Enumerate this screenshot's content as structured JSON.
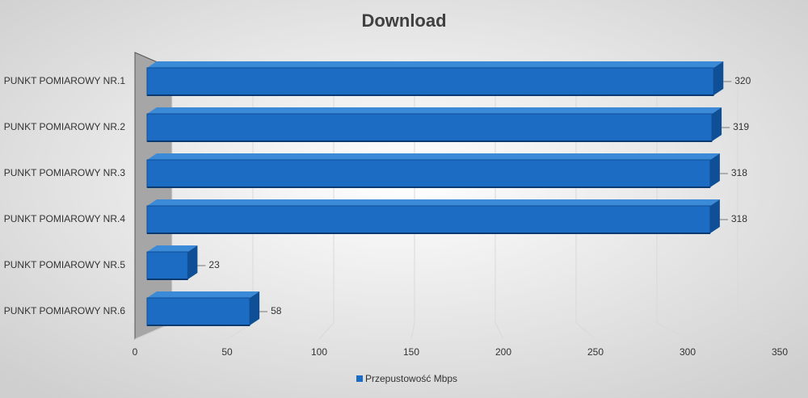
{
  "chart_data": {
    "type": "bar",
    "orientation": "horizontal",
    "title": "Download",
    "categories": [
      "PUNKT POMIAROWY NR.1",
      "PUNKT POMIAROWY NR.2",
      "PUNKT POMIAROWY NR.3",
      "PUNKT POMIAROWY NR.4",
      "PUNKT POMIAROWY NR.5",
      "PUNKT POMIAROWY NR.6"
    ],
    "series": [
      {
        "name": "Przepustowość Mbps",
        "color": "#1c6cc4",
        "values": [
          320,
          319,
          318,
          318,
          23,
          58
        ]
      }
    ],
    "xlim": [
      0,
      350
    ],
    "xticks": [
      0,
      50,
      100,
      150,
      200,
      250,
      300,
      350
    ],
    "grid": true,
    "legend": "bottom"
  }
}
